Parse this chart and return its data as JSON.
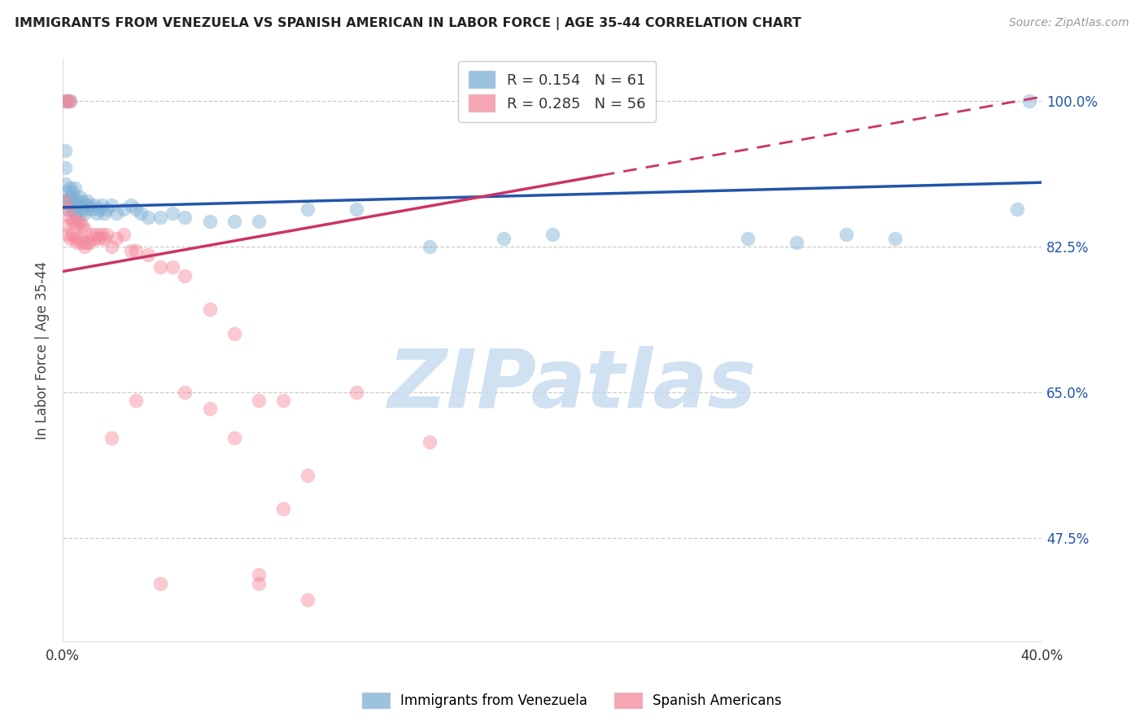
{
  "title": "IMMIGRANTS FROM VENEZUELA VS SPANISH AMERICAN IN LABOR FORCE | AGE 35-44 CORRELATION CHART",
  "source": "Source: ZipAtlas.com",
  "ylabel": "In Labor Force | Age 35-44",
  "legend_label_blue": "Immigrants from Venezuela",
  "legend_label_pink": "Spanish Americans",
  "blue_color": "#7BAFD4",
  "pink_color": "#F4889A",
  "trendline_blue_color": "#2255AA",
  "trendline_pink_color": "#CC3366",
  "watermark_color": "#D8E8F5",
  "watermark_text": "ZIPatlas",
  "R_blue": 0.154,
  "N_blue": 61,
  "R_pink": 0.285,
  "N_pink": 56,
  "xlim": [
    0.0,
    0.4
  ],
  "ylim": [
    0.35,
    1.05
  ],
  "ytick_values": [
    1.0,
    0.825,
    0.65,
    0.475
  ],
  "ytick_labels": [
    "100.0%",
    "82.5%",
    "65.0%",
    "47.5%"
  ],
  "xtick_values": [
    0.0,
    0.4
  ],
  "xtick_labels": [
    "0.0%",
    "40.0%"
  ],
  "blue_trendline": [
    0.0,
    0.4,
    0.872,
    0.902
  ],
  "pink_trendline": [
    0.0,
    0.4,
    0.795,
    1.005
  ],
  "blue_x": [
    0.001,
    0.001,
    0.001,
    0.001,
    0.001,
    0.002,
    0.002,
    0.002,
    0.002,
    0.003,
    0.003,
    0.003,
    0.003,
    0.004,
    0.004,
    0.004,
    0.005,
    0.005,
    0.005,
    0.006,
    0.006,
    0.007,
    0.007,
    0.008,
    0.008,
    0.009,
    0.009,
    0.01,
    0.01,
    0.011,
    0.012,
    0.013,
    0.014,
    0.015,
    0.016,
    0.017,
    0.018,
    0.02,
    0.022,
    0.025,
    0.028,
    0.03,
    0.032,
    0.035,
    0.04,
    0.045,
    0.05,
    0.06,
    0.07,
    0.08,
    0.1,
    0.12,
    0.15,
    0.18,
    0.2,
    0.28,
    0.3,
    0.32,
    0.34,
    0.39,
    0.395
  ],
  "blue_y": [
    0.88,
    0.9,
    0.92,
    0.94,
    1.0,
    0.87,
    0.88,
    0.89,
    1.0,
    0.875,
    0.885,
    0.895,
    1.0,
    0.87,
    0.88,
    0.89,
    0.865,
    0.875,
    0.895,
    0.86,
    0.88,
    0.875,
    0.885,
    0.87,
    0.88,
    0.865,
    0.875,
    0.87,
    0.88,
    0.875,
    0.87,
    0.875,
    0.865,
    0.87,
    0.875,
    0.865,
    0.87,
    0.875,
    0.865,
    0.87,
    0.875,
    0.87,
    0.865,
    0.86,
    0.86,
    0.865,
    0.86,
    0.855,
    0.855,
    0.855,
    0.87,
    0.87,
    0.825,
    0.835,
    0.84,
    0.835,
    0.83,
    0.84,
    0.835,
    0.87,
    1.0
  ],
  "pink_x": [
    0.001,
    0.001,
    0.001,
    0.002,
    0.002,
    0.002,
    0.003,
    0.003,
    0.003,
    0.004,
    0.004,
    0.005,
    0.005,
    0.006,
    0.006,
    0.007,
    0.007,
    0.008,
    0.008,
    0.009,
    0.009,
    0.01,
    0.011,
    0.012,
    0.013,
    0.014,
    0.015,
    0.016,
    0.017,
    0.018,
    0.02,
    0.022,
    0.025,
    0.028,
    0.03,
    0.035,
    0.04,
    0.045,
    0.05,
    0.06,
    0.07,
    0.08,
    0.1,
    0.12,
    0.15,
    0.08,
    0.09,
    0.1,
    0.02,
    0.03,
    0.04,
    0.05,
    0.06,
    0.07,
    0.08,
    0.09
  ],
  "pink_y": [
    0.85,
    0.88,
    1.0,
    0.84,
    0.87,
    1.0,
    0.835,
    0.86,
    1.0,
    0.84,
    0.855,
    0.835,
    0.855,
    0.83,
    0.85,
    0.835,
    0.855,
    0.83,
    0.85,
    0.825,
    0.845,
    0.83,
    0.83,
    0.84,
    0.835,
    0.84,
    0.835,
    0.84,
    0.835,
    0.84,
    0.825,
    0.835,
    0.84,
    0.82,
    0.82,
    0.815,
    0.8,
    0.8,
    0.79,
    0.75,
    0.72,
    0.42,
    0.55,
    0.65,
    0.59,
    0.64,
    0.64,
    0.4,
    0.595,
    0.64,
    0.42,
    0.65,
    0.63,
    0.595,
    0.43,
    0.51
  ]
}
